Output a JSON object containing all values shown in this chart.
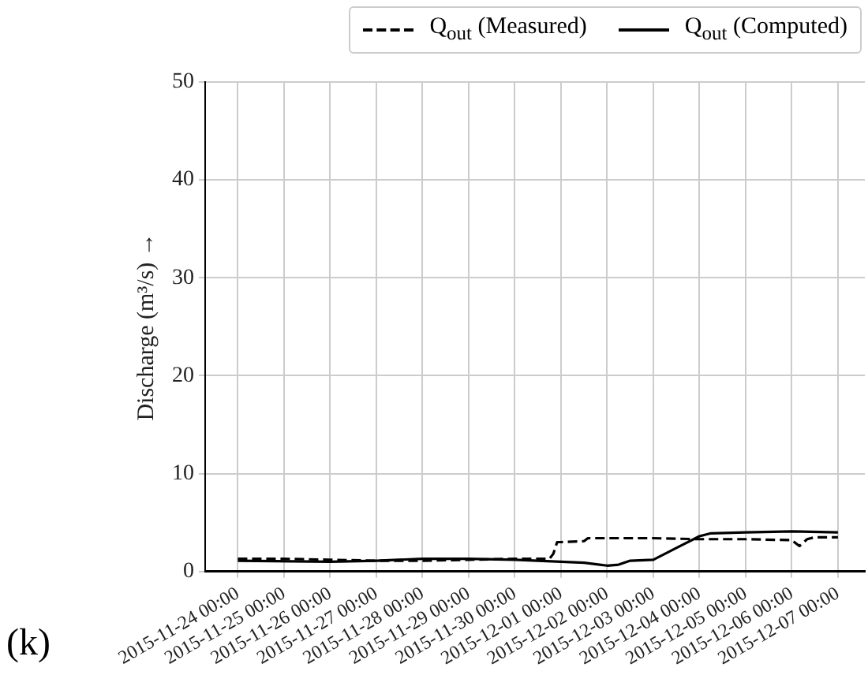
{
  "chart_data": {
    "type": "line",
    "ylabel": "Discharge (m³/s) →",
    "annotations": [
      "(k)"
    ],
    "legend": "top right",
    "grid": true,
    "xlim": [
      "2015-11-23T07:00",
      "2015-12-07T14:00"
    ],
    "ylim": [
      0,
      50
    ],
    "yticks": [
      0,
      10,
      20,
      30,
      40,
      50
    ],
    "xticks": [
      {
        "value": "2015-11-24T00:00",
        "label": "2015-11-24 00:00"
      },
      {
        "value": "2015-11-25T00:00",
        "label": "2015-11-25 00:00"
      },
      {
        "value": "2015-11-26T00:00",
        "label": "2015-11-26 00:00"
      },
      {
        "value": "2015-11-27T00:00",
        "label": "2015-11-27 00:00"
      },
      {
        "value": "2015-11-28T00:00",
        "label": "2015-11-28 00:00"
      },
      {
        "value": "2015-11-29T00:00",
        "label": "2015-11-29 00:00"
      },
      {
        "value": "2015-11-30T00:00",
        "label": "2015-11-30 00:00"
      },
      {
        "value": "2015-12-01T00:00",
        "label": "2015-12-01 00:00"
      },
      {
        "value": "2015-12-02T00:00",
        "label": "2015-12-02 00:00"
      },
      {
        "value": "2015-12-03T00:00",
        "label": "2015-12-03 00:00"
      },
      {
        "value": "2015-12-04T00:00",
        "label": "2015-12-04 00:00"
      },
      {
        "value": "2015-12-05T00:00",
        "label": "2015-12-05 00:00"
      },
      {
        "value": "2015-12-06T00:00",
        "label": "2015-12-06 00:00"
      },
      {
        "value": "2015-12-07T00:00",
        "label": "2015-12-07 00:00"
      }
    ],
    "series": [
      {
        "name": "Q$_{out}$ (Measured)",
        "color": "#000000",
        "line_style": "dashed",
        "x": [
          "2015-11-24T00:00",
          "2015-11-25T00:00",
          "2015-11-26T00:00",
          "2015-11-27T00:00",
          "2015-11-28T00:00",
          "2015-11-29T00:00",
          "2015-11-30T00:00",
          "2015-11-30T18:00",
          "2015-11-30T20:00",
          "2015-11-30T22:00",
          "2015-12-01T00:00",
          "2015-12-01T12:00",
          "2015-12-01T14:00",
          "2015-12-02T00:00",
          "2015-12-03T00:00",
          "2015-12-04T00:00",
          "2015-12-05T00:00",
          "2015-12-06T00:00",
          "2015-12-06T04:00",
          "2015-12-06T08:00",
          "2015-12-06T12:00",
          "2015-12-07T00:00"
        ],
        "values": [
          1.3,
          1.3,
          1.2,
          1.1,
          1.1,
          1.2,
          1.3,
          1.3,
          1.8,
          3.0,
          3.0,
          3.1,
          3.4,
          3.4,
          3.4,
          3.3,
          3.3,
          3.2,
          2.6,
          3.3,
          3.5,
          3.5
        ]
      },
      {
        "name": "Q$_{out}$ (Computed)",
        "color": "#000000",
        "line_style": "solid",
        "x": [
          "2015-11-24T00:00",
          "2015-11-26T00:00",
          "2015-11-27T00:00",
          "2015-11-28T00:00",
          "2015-11-29T00:00",
          "2015-11-30T00:00",
          "2015-12-01T00:00",
          "2015-12-01T12:00",
          "2015-12-02T00:00",
          "2015-12-02T06:00",
          "2015-12-02T12:00",
          "2015-12-03T00:00",
          "2015-12-03T12:00",
          "2015-12-04T00:00",
          "2015-12-04T06:00",
          "2015-12-05T00:00",
          "2015-12-06T00:00",
          "2015-12-07T00:00"
        ],
        "values": [
          1.1,
          1.0,
          1.1,
          1.3,
          1.3,
          1.2,
          1.0,
          0.9,
          0.6,
          0.7,
          1.1,
          1.2,
          2.4,
          3.6,
          3.9,
          4.0,
          4.1,
          4.0
        ]
      }
    ]
  }
}
